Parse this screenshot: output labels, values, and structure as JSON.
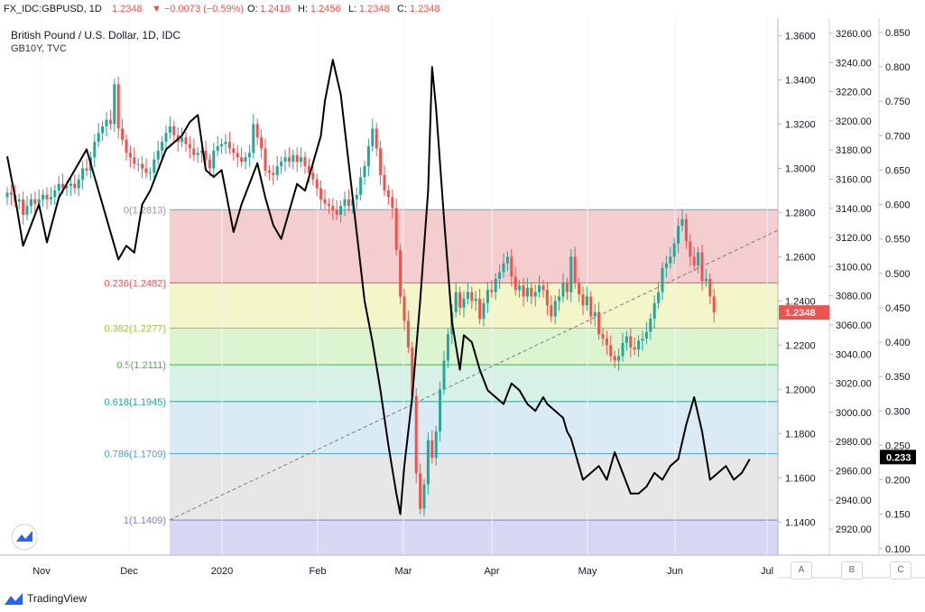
{
  "header": {
    "symbol": "FX_IDC:GBPUSD, 1D",
    "last": "1.2348",
    "change": "▼ −0.0073 (−0.59%)",
    "o_label": "O:",
    "o_value": "1.2418",
    "h_label": "H:",
    "h_value": "1.2456",
    "l_label": "L:",
    "l_value": "1.2348",
    "c_label": "C:",
    "c_value": "1.2348"
  },
  "chart_title": "British Pound / U.S. Dollar, 1D, IDC",
  "chart_subtitle": "GB10Y, TVC",
  "footer": {
    "brand": "TradingView"
  },
  "scale_buttons": [
    "A",
    "B",
    "C"
  ],
  "colors": {
    "up": "#26a69a",
    "down": "#ef5350",
    "overlay_line": "#000000",
    "last_price_bg": "#ef5350",
    "overlay_tag_bg": "#000000"
  },
  "chart_data": {
    "type": "candlestick",
    "x_ticks": [
      "Nov",
      "Dec",
      "2020",
      "Feb",
      "Mar",
      "Apr",
      "May",
      "Jun",
      "Jul"
    ],
    "right_axis_1": {
      "ticks": [
        "1.3600",
        "1.3400",
        "1.3200",
        "1.3000",
        "1.2800",
        "1.2600",
        "1.2400",
        "1.2200",
        "1.2000",
        "1.1800",
        "1.1600",
        "1.1400"
      ],
      "range": [
        1.125,
        1.368
      ],
      "last_price": "1.2348"
    },
    "right_axis_2": {
      "ticks": [
        "3260.00",
        "3240.00",
        "3220.00",
        "3200.00",
        "3180.00",
        "3160.00",
        "3140.00",
        "3120.00",
        "3100.00",
        "3080.00",
        "3060.00",
        "3040.00",
        "3020.00",
        "3000.00",
        "2980.00",
        "2960.00",
        "2940.00",
        "2920.00"
      ]
    },
    "right_axis_3": {
      "ticks": [
        "0.850",
        "0.800",
        "0.750",
        "0.700",
        "0.650",
        "0.600",
        "0.550",
        "0.500",
        "0.450",
        "0.400",
        "0.350",
        "0.300",
        "0.250",
        "0.200",
        "0.150",
        "0.100"
      ],
      "range": [
        0.0905,
        0.8709
      ],
      "last_value": "0.233"
    },
    "fib_levels": [
      {
        "label": "0(1.2813)",
        "price": 1.2813,
        "line": "#9598a1",
        "fill": "#f2c4c6"
      },
      {
        "label": "0.236(1.2482)",
        "price": 1.2482,
        "line": "#ef5350",
        "fill": "#f0f4bf"
      },
      {
        "label": "0.382(1.2277)",
        "price": 1.2277,
        "line": "#a4c231",
        "fill": "#d6f2c8"
      },
      {
        "label": "0.5(1.2111)",
        "price": 1.2111,
        "line": "#4caf50",
        "fill": "#cfeee0"
      },
      {
        "label": "0.618(1.1945)",
        "price": 1.1945,
        "line": "#26a69a",
        "fill": "#d4e8f4"
      },
      {
        "label": "0.786(1.1709)",
        "price": 1.1709,
        "line": "#42a5c5",
        "fill": "#e3e3e3"
      },
      {
        "label": "1(1.1409)",
        "price": 1.1409,
        "line": "#7e7fbf",
        "fill": "#d1d1f2"
      }
    ],
    "trendline": {
      "from": {
        "date": "Dec 16",
        "price": 1.1409
      },
      "to": {
        "date": "Jun 26",
        "price": 1.272
      }
    },
    "series": [
      {
        "name": "GBPUSD",
        "close": [
          1.289,
          1.288,
          1.285,
          1.286,
          1.279,
          1.283,
          1.286,
          1.284,
          1.286,
          1.288,
          1.286,
          1.287,
          1.29,
          1.293,
          1.291,
          1.292,
          1.293,
          1.291,
          1.295,
          1.3,
          1.299,
          1.305,
          1.312,
          1.316,
          1.319,
          1.322,
          1.32,
          1.338,
          1.318,
          1.313,
          1.307,
          1.305,
          1.302,
          1.302,
          1.3,
          1.298,
          1.298,
          1.304,
          1.308,
          1.312,
          1.316,
          1.319,
          1.315,
          1.312,
          1.314,
          1.311,
          1.309,
          1.306,
          1.307,
          1.308,
          1.304,
          1.3,
          1.308,
          1.31,
          1.311,
          1.312,
          1.309,
          1.307,
          1.305,
          1.303,
          1.305,
          1.307,
          1.32,
          1.314,
          1.309,
          1.299,
          1.298,
          1.297,
          1.301,
          1.303,
          1.305,
          1.303,
          1.306,
          1.303,
          1.305,
          1.301,
          1.298,
          1.295,
          1.291,
          1.286,
          1.284,
          1.283,
          1.281,
          1.279,
          1.283,
          1.286,
          1.283,
          1.286,
          1.288,
          1.296,
          1.301,
          1.31,
          1.318,
          1.309,
          1.297,
          1.29,
          1.287,
          1.282,
          1.263,
          1.242,
          1.231,
          1.219,
          1.197,
          1.162,
          1.146,
          1.157,
          1.177,
          1.169,
          1.181,
          1.2,
          1.213,
          1.225,
          1.235,
          1.244,
          1.237,
          1.241,
          1.244,
          1.24,
          1.241,
          1.232,
          1.239,
          1.245,
          1.244,
          1.25,
          1.253,
          1.257,
          1.26,
          1.251,
          1.245,
          1.247,
          1.242,
          1.246,
          1.242,
          1.244,
          1.247,
          1.245,
          1.238,
          1.233,
          1.24,
          1.242,
          1.248,
          1.244,
          1.26,
          1.248,
          1.243,
          1.238,
          1.242,
          1.233,
          1.235,
          1.225,
          1.223,
          1.22,
          1.215,
          1.213,
          1.215,
          1.221,
          1.224,
          1.219,
          1.218,
          1.222,
          1.223,
          1.226,
          1.232,
          1.239,
          1.244,
          1.255,
          1.257,
          1.26,
          1.266,
          1.274,
          1.277,
          1.267,
          1.26,
          1.256,
          1.262,
          1.249,
          1.25,
          1.242,
          1.2348
        ]
      },
      {
        "name": "GB10Y",
        "points": [
          [
            0,
            0.67
          ],
          [
            2,
            0.61
          ],
          [
            4,
            0.54
          ],
          [
            6,
            0.57
          ],
          [
            8,
            0.6
          ],
          [
            10,
            0.545
          ],
          [
            13,
            0.61
          ],
          [
            16,
            0.64
          ],
          [
            18,
            0.66
          ],
          [
            20,
            0.68
          ],
          [
            22,
            0.64
          ],
          [
            24,
            0.6
          ],
          [
            26,
            0.56
          ],
          [
            28,
            0.52
          ],
          [
            30,
            0.54
          ],
          [
            32,
            0.53
          ],
          [
            34,
            0.6
          ],
          [
            36,
            0.62
          ],
          [
            38,
            0.65
          ],
          [
            40,
            0.68
          ],
          [
            42,
            0.69
          ],
          [
            44,
            0.7
          ],
          [
            46,
            0.72
          ],
          [
            48,
            0.73
          ],
          [
            50,
            0.65
          ],
          [
            52,
            0.64
          ],
          [
            54,
            0.65
          ],
          [
            55,
            0.62
          ],
          [
            57,
            0.56
          ],
          [
            59,
            0.6
          ],
          [
            61,
            0.63
          ],
          [
            63,
            0.66
          ],
          [
            65,
            0.61
          ],
          [
            67,
            0.57
          ],
          [
            69,
            0.55
          ],
          [
            71,
            0.59
          ],
          [
            73,
            0.63
          ],
          [
            75,
            0.62
          ],
          [
            77,
            0.66
          ],
          [
            79,
            0.7
          ],
          [
            80,
            0.75
          ],
          [
            82,
            0.81
          ],
          [
            84,
            0.76
          ],
          [
            86,
            0.66
          ],
          [
            88,
            0.56
          ],
          [
            90,
            0.46
          ],
          [
            92,
            0.4
          ],
          [
            94,
            0.33
          ],
          [
            96,
            0.25
          ],
          [
            98,
            0.18
          ],
          [
            99,
            0.15
          ],
          [
            100,
            0.22
          ],
          [
            102,
            0.32
          ],
          [
            104,
            0.46
          ],
          [
            106,
            0.62
          ],
          [
            107,
            0.8
          ],
          [
            108,
            0.74
          ],
          [
            110,
            0.58
          ],
          [
            112,
            0.43
          ],
          [
            114,
            0.36
          ],
          [
            115,
            0.41
          ],
          [
            117,
            0.4
          ],
          [
            119,
            0.36
          ],
          [
            121,
            0.33
          ],
          [
            123,
            0.32
          ],
          [
            125,
            0.31
          ],
          [
            127,
            0.34
          ],
          [
            129,
            0.33
          ],
          [
            131,
            0.31
          ],
          [
            133,
            0.3
          ],
          [
            135,
            0.32
          ],
          [
            136,
            0.31
          ],
          [
            138,
            0.3
          ],
          [
            140,
            0.29
          ],
          [
            141,
            0.27
          ],
          [
            142,
            0.26
          ],
          [
            144,
            0.22
          ],
          [
            145,
            0.2
          ],
          [
            147,
            0.21
          ],
          [
            149,
            0.22
          ],
          [
            151,
            0.2
          ],
          [
            153,
            0.24
          ],
          [
            155,
            0.21
          ],
          [
            157,
            0.18
          ],
          [
            159,
            0.18
          ],
          [
            161,
            0.19
          ],
          [
            163,
            0.21
          ],
          [
            165,
            0.2
          ],
          [
            167,
            0.22
          ],
          [
            169,
            0.23
          ],
          [
            171,
            0.28
          ],
          [
            173,
            0.32
          ],
          [
            175,
            0.27
          ],
          [
            177,
            0.2
          ],
          [
            179,
            0.21
          ],
          [
            181,
            0.22
          ],
          [
            183,
            0.2
          ],
          [
            185,
            0.21
          ],
          [
            187,
            0.23
          ]
        ]
      }
    ]
  }
}
